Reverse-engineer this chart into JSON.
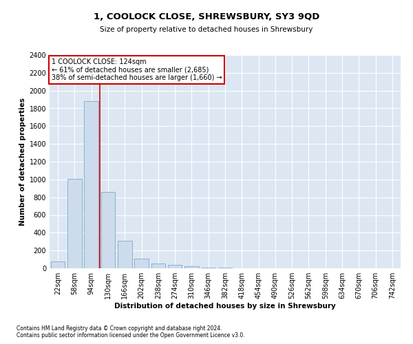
{
  "title": "1, COOLOCK CLOSE, SHREWSBURY, SY3 9QD",
  "subtitle": "Size of property relative to detached houses in Shrewsbury",
  "xlabel": "Distribution of detached houses by size in Shrewsbury",
  "ylabel": "Number of detached properties",
  "footnote1": "Contains HM Land Registry data © Crown copyright and database right 2024.",
  "footnote2": "Contains public sector information licensed under the Open Government Licence v3.0.",
  "annotation_line1": "1 COOLOCK CLOSE: 124sqm",
  "annotation_line2": "← 61% of detached houses are smaller (2,685)",
  "annotation_line3": "38% of semi-detached houses are larger (1,660) →",
  "bar_color": "#cddcec",
  "bar_edge_color": "#7aaaca",
  "vline_color": "#cc0000",
  "annotation_box_edge_color": "#cc0000",
  "bg_color": "#dce7f3",
  "grid_color": "#ffffff",
  "ylim": [
    0,
    2400
  ],
  "categories": [
    "22sqm",
    "58sqm",
    "94sqm",
    "130sqm",
    "166sqm",
    "202sqm",
    "238sqm",
    "274sqm",
    "310sqm",
    "346sqm",
    "382sqm",
    "418sqm",
    "454sqm",
    "490sqm",
    "526sqm",
    "562sqm",
    "598sqm",
    "634sqm",
    "670sqm",
    "706sqm",
    "742sqm"
  ],
  "values": [
    80,
    1010,
    1880,
    860,
    310,
    110,
    55,
    40,
    25,
    10,
    5,
    0,
    0,
    0,
    0,
    0,
    0,
    0,
    0,
    0,
    0
  ],
  "vline_position": 2.5,
  "title_fontsize": 9.5,
  "subtitle_fontsize": 7.5,
  "xlabel_fontsize": 7.5,
  "ylabel_fontsize": 7.5,
  "tick_fontsize": 7,
  "annotation_fontsize": 7,
  "footnote_fontsize": 5.5
}
